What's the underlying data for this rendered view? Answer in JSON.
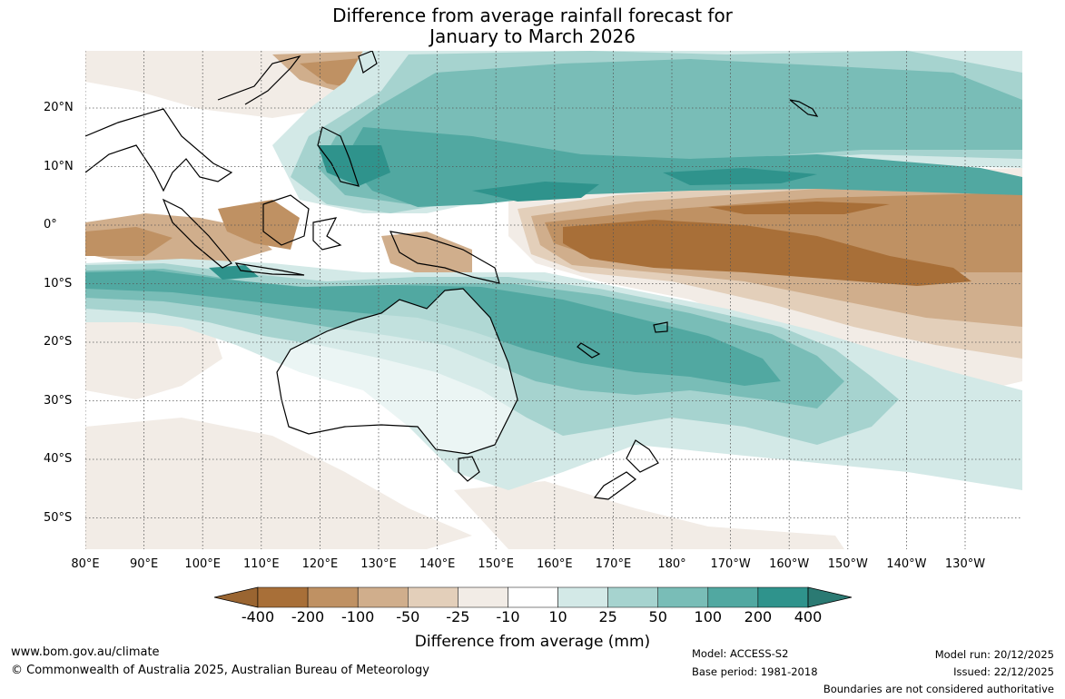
{
  "title": {
    "line1": "Difference from average rainfall forecast for",
    "line2": "January to March 2026"
  },
  "map": {
    "latitude_labels": [
      "20°N",
      "10°N",
      "0°",
      "10°S",
      "20°S",
      "30°S",
      "40°S",
      "50°S"
    ],
    "longitude_labels": [
      "80°E",
      "90°E",
      "100°E",
      "110°E",
      "120°E",
      "130°E",
      "140°E",
      "150°E",
      "160°E",
      "170°E",
      "180°",
      "170°W",
      "160°W",
      "150°W",
      "140°W",
      "130°W"
    ]
  },
  "colorbar": {
    "tick_labels": [
      "-400",
      "-200",
      "-100",
      "-50",
      "-25",
      "-10",
      "10",
      "25",
      "50",
      "100",
      "200",
      "400"
    ],
    "bins": [
      {
        "color": "#a86f38"
      },
      {
        "color": "#bf9163"
      },
      {
        "color": "#d0ae8c"
      },
      {
        "color": "#e3cfba"
      },
      {
        "color": "#f2ece6"
      },
      {
        "color": "#ffffff"
      },
      {
        "color": "#d3e9e7"
      },
      {
        "color": "#a6d3cf"
      },
      {
        "color": "#79bdb7"
      },
      {
        "color": "#51a8a1"
      },
      {
        "color": "#2f938c"
      }
    ],
    "min_extend_color": "#9a6531",
    "max_extend_color": "#2b7a73",
    "title": "Difference from average (mm)"
  },
  "footer": {
    "url": "www.bom.gov.au/climate",
    "copyright": "© Commonwealth of Australia 2025, Australian Bureau of Meteorology",
    "model": "Model: ACCESS-S2",
    "base_period": "Base period: 1981-2018",
    "model_run": "Model run: 20/12/2025",
    "issued": "Issued: 22/12/2025",
    "disclaimer": "Boundaries are not considered authoritative"
  }
}
